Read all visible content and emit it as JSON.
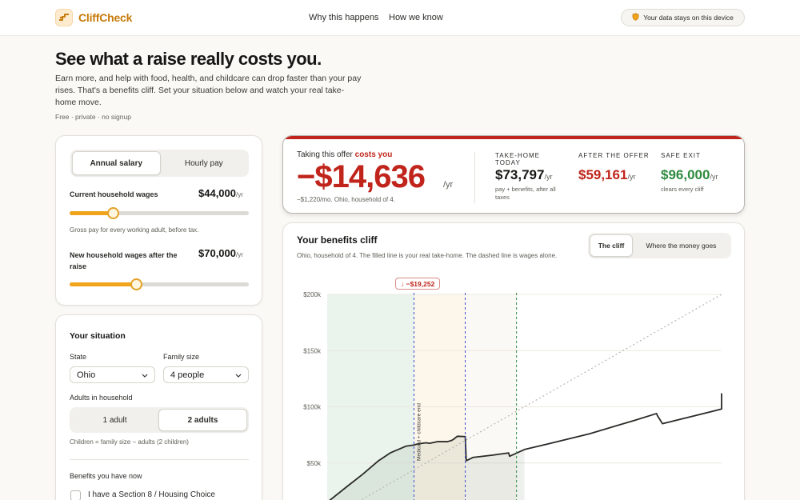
{
  "app": {
    "brand": "CliffCheck",
    "nav": [
      "Why this happens",
      "How we know"
    ],
    "privacy": "Your data stays on this device"
  },
  "hero": {
    "title": "See what a raise really costs you.",
    "text": "Earn more, and help with food, health, and childcare can drop faster than your pay rises. That's a benefits cliff. Set your situation below and watch your real take-home move.",
    "meta": "Free · private · no signup"
  },
  "wages": {
    "mode_options": [
      "Annual salary",
      "Hourly pay"
    ],
    "mode_selected": "Annual salary",
    "current_label": "Current household wages",
    "current_value": "$44,000",
    "current_unit": "/yr",
    "current_fraction": 0.24,
    "current_help": "Gross pay for every working adult, before tax.",
    "new_label": "New household wages after the raise",
    "new_value": "$70,000",
    "new_unit": "/yr",
    "new_fraction": 0.37
  },
  "situation": {
    "title": "Your situation",
    "state_label": "State",
    "state_value": "Ohio",
    "family_label": "Family size",
    "family_value": "4 people",
    "adults_label": "Adults in household",
    "adults_options": [
      "1 adult",
      "2 adults"
    ],
    "adults_selected": "2 adults",
    "children_note": "Children = family size − adults (2 children)",
    "benefits_title": "Benefits you have now",
    "benefit_1": "I have a Section 8 / Housing Choice"
  },
  "summary": {
    "lead": "Taking this offer",
    "lead_emphasis": "costs you",
    "amount": "−$14,636",
    "unit": "/yr",
    "sub": "−$1,220/mo. Ohio, household of 4.",
    "cols": [
      {
        "title": "TAKE-HOME TODAY",
        "value": "$73,797",
        "unit": "/yr",
        "note": "pay + benefits, after all taxes",
        "color": "#161614"
      },
      {
        "title": "AFTER THE OFFER",
        "value": "$59,161",
        "unit": "/yr",
        "note": "",
        "color": "#c0241b"
      },
      {
        "title": "SAFE EXIT",
        "value": "$96,000",
        "unit": "/yr",
        "note": "clears every cliff",
        "color": "#2e8a3e"
      }
    ]
  },
  "chart_panel": {
    "title": "Your benefits cliff",
    "desc": "Ohio, household of 4. The filled line is your real take-home. The dashed line is wages alone.",
    "tabs": [
      "The cliff",
      "Where the money goes"
    ],
    "tab_selected": "The cliff",
    "callout": "↓ −$19,252",
    "marker_label": "Medicaid + childcare end"
  },
  "chart_data": {
    "type": "line",
    "xlim": [
      0,
      200000
    ],
    "ylim": [
      0,
      200000
    ],
    "y_ticks": [
      "$200k",
      "$150k",
      "$100k",
      "$50k"
    ],
    "y_tick_values": [
      200000,
      150000,
      100000,
      50000
    ],
    "series": [
      {
        "values": [
          [
            0,
            15000
          ],
          [
            10000,
            29000
          ],
          [
            18000,
            40000
          ],
          [
            26000,
            52000
          ],
          [
            32000,
            59000
          ],
          [
            40000,
            65000
          ],
          [
            44000,
            66000
          ],
          [
            46000,
            67000
          ],
          [
            50000,
            68000
          ],
          [
            52000,
            67500
          ],
          [
            56000,
            69000
          ],
          [
            61000,
            69000
          ],
          [
            63000,
            70000
          ],
          [
            64000,
            71000
          ],
          [
            66000,
            73797
          ],
          [
            70000,
            73500
          ],
          [
            70500,
            52000
          ],
          [
            74000,
            55000
          ],
          [
            84000,
            57000
          ],
          [
            92000,
            59000
          ],
          [
            92500,
            56000
          ],
          [
            100000,
            62000
          ],
          [
            112000,
            67000
          ],
          [
            133000,
            76000
          ],
          [
            156000,
            88000
          ],
          [
            167000,
            94000
          ],
          [
            167500,
            92000
          ],
          [
            170000,
            85000
          ],
          [
            200000,
            98000
          ],
          [
            200000,
            112000
          ]
        ]
      },
      {
        "values": [
          [
            0,
            0
          ],
          [
            200000,
            200000
          ]
        ]
      }
    ],
    "markers": [
      {
        "x": 44000,
        "color": "#3a4ed1"
      },
      {
        "x": 70000,
        "color": "#3a4ed1"
      },
      {
        "x": 96000,
        "color": "#2e8a3e"
      }
    ],
    "grid": true
  },
  "colors": {
    "accent": "#f0a41c",
    "brand": "#c67a09",
    "danger": "#c0241b",
    "safe": "#2e8a3e"
  }
}
